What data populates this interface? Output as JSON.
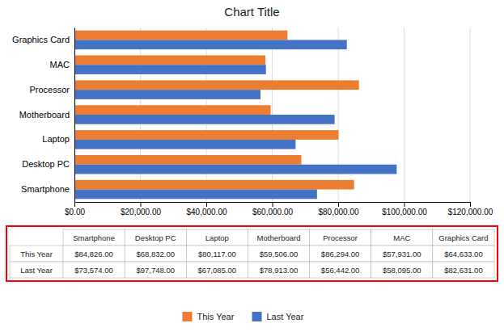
{
  "chart_data": {
    "type": "bar",
    "orientation": "horizontal",
    "title": "Chart Title",
    "categories": [
      "Graphics Card",
      "MAC",
      "Processor",
      "Motherboard",
      "Laptop",
      "Desktop PC",
      "Smartphone"
    ],
    "series": [
      {
        "name": "This Year",
        "color": "#ED7D31",
        "values": [
          64633,
          57931,
          86294,
          59506,
          80117,
          68832,
          84826
        ]
      },
      {
        "name": "Last Year",
        "color": "#4472C4",
        "values": [
          82631,
          58095,
          56442,
          78913,
          67085,
          97748,
          73574
        ]
      }
    ],
    "xlim": [
      0,
      120000
    ],
    "xticks": [
      {
        "value": 0,
        "label": "$0.00"
      },
      {
        "value": 20000,
        "label": "$20,000.00"
      },
      {
        "value": 40000,
        "label": "$40,000.00"
      },
      {
        "value": 60000,
        "label": "$60,000.00"
      },
      {
        "value": 80000,
        "label": "$80,000.00"
      },
      {
        "value": 100000,
        "label": "$100,000.00"
      },
      {
        "value": 120000,
        "label": "$120,000.00"
      }
    ],
    "grid": true,
    "legend": "bottom",
    "table": {
      "color": "#FF0000",
      "columns": [
        "Smartphone",
        "Desktop PC",
        "Laptop",
        "Motherboard",
        "Processor",
        "MAC",
        "Graphics Card"
      ],
      "rows": [
        {
          "name": "This Year",
          "values": [
            84826,
            68832,
            80117,
            59506,
            86294,
            57931,
            64633
          ],
          "value_labels": [
            "$84,826.00",
            "$68,832.00",
            "$80,117.00",
            "$59,506.00",
            "$86,294.00",
            "$57,931.00",
            "$64,633.00"
          ]
        },
        {
          "name": "Last Year",
          "values": [
            73574,
            97748,
            67085,
            78913,
            56442,
            58095,
            82631
          ],
          "value_labels": [
            "$73,574.00",
            "$97,748.00",
            "$67,085.00",
            "$78,913.00",
            "$56,442.00",
            "$58,095.00",
            "$82,631.00"
          ]
        }
      ]
    }
  }
}
